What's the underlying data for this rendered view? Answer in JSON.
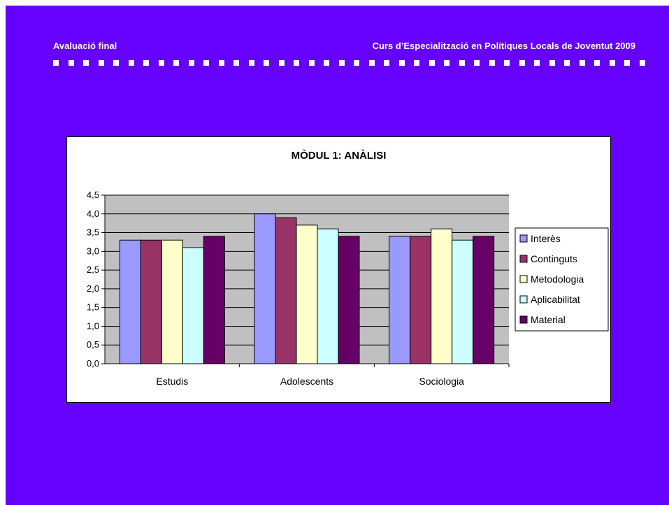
{
  "header": {
    "left_title": "Avaluació final",
    "right_title": "Curs d’Especialització en Polítiques Locals de Joventut 2009"
  },
  "colors": {
    "background": "#6600ff",
    "plot_area": "#c0c0c0"
  },
  "chart_data": {
    "type": "bar",
    "title": "MÒDUL 1: ANÀLISI",
    "categories": [
      "Estudis",
      "Adolescents",
      "Sociologia"
    ],
    "series": [
      {
        "name": "Interès",
        "color": "#9999ff",
        "values": [
          3.3,
          4.0,
          3.4
        ]
      },
      {
        "name": "Continguts",
        "color": "#993366",
        "values": [
          3.3,
          3.9,
          3.4
        ]
      },
      {
        "name": "Metodologia",
        "color": "#ffffcc",
        "values": [
          3.3,
          3.7,
          3.6
        ]
      },
      {
        "name": "Aplicabilitat",
        "color": "#ccffff",
        "values": [
          3.1,
          3.6,
          3.3
        ]
      },
      {
        "name": "Material",
        "color": "#660066",
        "values": [
          3.4,
          3.4,
          3.4
        ]
      }
    ],
    "y_ticks": [
      "0,0",
      "0,5",
      "1,0",
      "1,5",
      "2,0",
      "2,5",
      "3,0",
      "3,5",
      "4,0",
      "4,5"
    ],
    "ylim": [
      0,
      4.5
    ],
    "xlabel": "",
    "ylabel": "",
    "grid": true,
    "legend_position": "right"
  }
}
